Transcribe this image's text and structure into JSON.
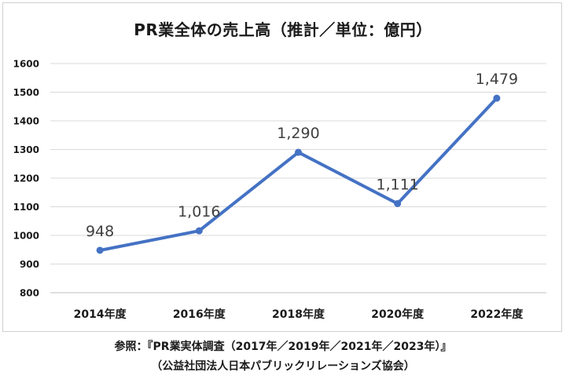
{
  "chart_data": {
    "type": "line",
    "title": "PR業全体の売上高（推計／単位：億円）",
    "categories": [
      "2014年度",
      "2016年度",
      "2018年度",
      "2020年度",
      "2022年度"
    ],
    "values": [
      948,
      1016,
      1290,
      1111,
      1479
    ],
    "data_labels": [
      "948",
      "1,016",
      "1,290",
      "1,111",
      "1,479"
    ],
    "ylim": [
      800,
      1600
    ],
    "y_ticks": [
      800,
      900,
      1000,
      1100,
      1200,
      1300,
      1400,
      1500,
      1600
    ],
    "grid": true,
    "legend": "none",
    "series_color": "#4472c4"
  },
  "source": {
    "line1": "参照：『PR業実体調査（2017年／2019年／2021年／2023年）』",
    "line2": "（公益社団法人日本パブリックリレーションズ協会）"
  }
}
